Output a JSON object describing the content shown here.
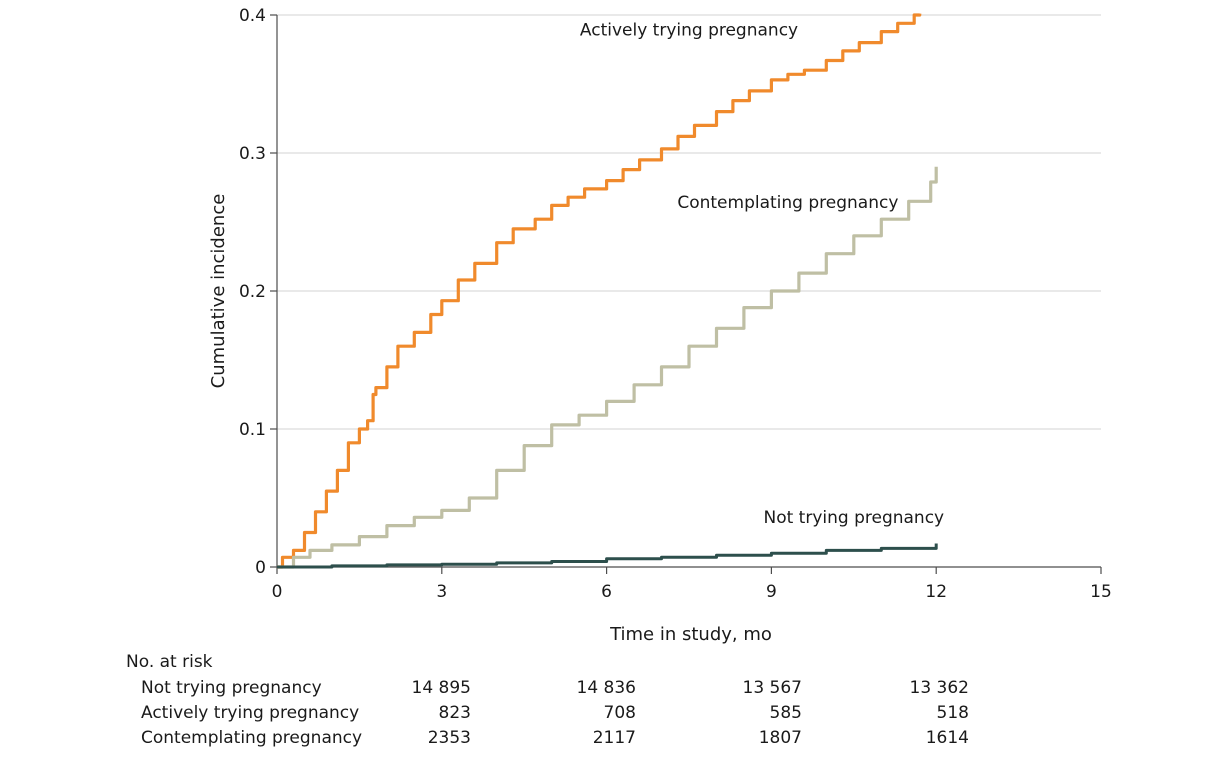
{
  "chart_data": {
    "type": "line",
    "title": "",
    "xlabel": "Time in study, mo",
    "ylabel": "Cumulative incidence",
    "xlim": [
      0,
      15
    ],
    "ylim": [
      0,
      0.4
    ],
    "x_ticks": [
      0,
      3,
      6,
      9,
      12,
      15
    ],
    "x_tick_labels": [
      "0",
      "3",
      "6",
      "9",
      "12",
      "15"
    ],
    "y_ticks": [
      0,
      0.1,
      0.2,
      0.3,
      0.4
    ],
    "y_tick_labels": [
      "0",
      "0.1",
      "0.2",
      "0.3",
      "0.4"
    ],
    "grid": "horizontal",
    "series": [
      {
        "name": "Actively trying pregnancy",
        "color": "#f08a2c",
        "x": [
          0,
          0.1,
          0.3,
          0.5,
          0.7,
          0.9,
          1.1,
          1.3,
          1.5,
          1.65,
          1.75,
          1.8,
          2.0,
          2.2,
          2.5,
          2.8,
          3.0,
          3.3,
          3.6,
          4.0,
          4.3,
          4.7,
          5.0,
          5.3,
          5.6,
          6.0,
          6.3,
          6.6,
          7.0,
          7.3,
          7.6,
          8.0,
          8.3,
          8.6,
          9.0,
          9.3,
          9.6,
          10.0,
          10.3,
          10.6,
          11.0,
          11.3,
          11.6,
          11.7
        ],
        "y": [
          0,
          0.007,
          0.012,
          0.025,
          0.04,
          0.055,
          0.07,
          0.09,
          0.1,
          0.106,
          0.125,
          0.13,
          0.145,
          0.16,
          0.17,
          0.183,
          0.193,
          0.208,
          0.22,
          0.235,
          0.245,
          0.252,
          0.262,
          0.268,
          0.274,
          0.28,
          0.288,
          0.295,
          0.303,
          0.312,
          0.32,
          0.33,
          0.338,
          0.345,
          0.353,
          0.357,
          0.36,
          0.367,
          0.374,
          0.38,
          0.388,
          0.394,
          0.4,
          0.401
        ]
      },
      {
        "name": "Contemplating pregnancy",
        "color": "#bfbfa4",
        "x": [
          0,
          0.3,
          0.6,
          1.0,
          1.5,
          2.0,
          2.5,
          3.0,
          3.5,
          4.0,
          4.5,
          5.0,
          5.5,
          6.0,
          6.5,
          7.0,
          7.5,
          8.0,
          8.5,
          9.0,
          9.5,
          10.0,
          10.5,
          11.0,
          11.5,
          11.9,
          12.0
        ],
        "y": [
          0,
          0.007,
          0.012,
          0.016,
          0.022,
          0.03,
          0.036,
          0.041,
          0.05,
          0.07,
          0.088,
          0.103,
          0.11,
          0.12,
          0.132,
          0.145,
          0.16,
          0.173,
          0.188,
          0.2,
          0.213,
          0.227,
          0.24,
          0.252,
          0.265,
          0.279,
          0.29
        ]
      },
      {
        "name": "Not trying pregnancy",
        "color": "#2d4f4c",
        "x": [
          0,
          1,
          2,
          3,
          4,
          5,
          6,
          7,
          8,
          9,
          10,
          11,
          12
        ],
        "y": [
          0,
          0.0008,
          0.0015,
          0.002,
          0.003,
          0.004,
          0.006,
          0.007,
          0.0085,
          0.01,
          0.012,
          0.0135,
          0.017
        ]
      }
    ]
  },
  "risk_table": {
    "title": "No. at risk",
    "rows": [
      {
        "name": "Not trying pregnancy",
        "values": [
          "14 895",
          "14 836",
          "13 567",
          "13 362"
        ]
      },
      {
        "name": "Actively trying pregnancy",
        "values": [
          "823",
          "708",
          "585",
          "518"
        ]
      },
      {
        "name": "Contemplating pregnancy",
        "values": [
          "2353",
          "2117",
          "1807",
          "1614"
        ]
      }
    ]
  }
}
